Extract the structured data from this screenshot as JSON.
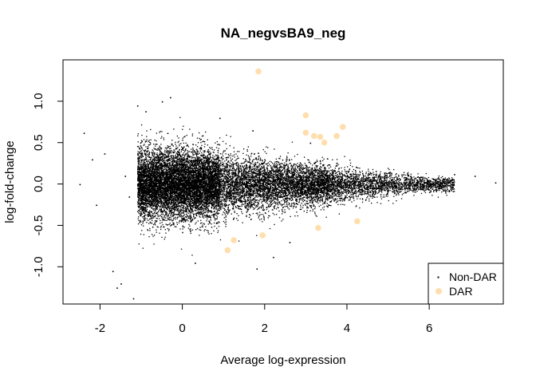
{
  "chart_data": {
    "type": "scatter",
    "title": "NA_negvsBA9_neg",
    "xlabel": "Average log-expression",
    "ylabel": "log-fold-change",
    "xlim": [
      -2.9,
      7.8
    ],
    "ylim": [
      -1.45,
      1.5
    ],
    "x_ticks": [
      "-2",
      "0",
      "2",
      "4",
      "6"
    ],
    "y_ticks": [
      "-1.0",
      "-0.5",
      "0.0",
      "0.5",
      "1.0"
    ],
    "legend": {
      "position": "bottom-right",
      "entries": [
        "Non-DAR",
        "DAR"
      ]
    },
    "colors": {
      "Non-DAR": "#000000",
      "DAR": "#FFDEAD"
    },
    "series": [
      {
        "name": "Non-DAR",
        "description": "dense cloud of ~100k points, funnel-shaped: wide spread near x=0 narrowing toward x=7",
        "outliers": [
          [
            -2.5,
            0.0
          ],
          [
            -2.4,
            0.62
          ],
          [
            -2.2,
            0.3
          ],
          [
            -2.1,
            -0.25
          ],
          [
            -1.9,
            0.37
          ],
          [
            -1.7,
            -1.05
          ],
          [
            -1.6,
            -1.25
          ],
          [
            -1.5,
            -1.2
          ],
          [
            -1.2,
            -1.38
          ],
          [
            -1.1,
            0.95
          ],
          [
            -0.3,
            1.05
          ],
          [
            -0.5,
            1.0
          ],
          [
            -0.9,
            0.88
          ],
          [
            7.6,
            0.02
          ],
          [
            7.1,
            0.1
          ],
          [
            6.6,
            0.12
          ],
          [
            1.8,
            -1.02
          ],
          [
            -1.4,
            0.1
          ],
          [
            -1.3,
            -0.15
          ],
          [
            0.3,
            -0.95
          ],
          [
            2.2,
            -0.88
          ],
          [
            0.9,
            0.8
          ],
          [
            1.7,
            0.65
          ],
          [
            3.1,
            0.5
          ],
          [
            2.6,
            -0.7
          ]
        ]
      },
      {
        "name": "DAR",
        "points": [
          [
            1.85,
            1.36
          ],
          [
            3.0,
            0.83
          ],
          [
            3.0,
            0.62
          ],
          [
            3.2,
            0.58
          ],
          [
            3.35,
            0.57
          ],
          [
            3.45,
            0.5
          ],
          [
            3.75,
            0.58
          ],
          [
            3.9,
            0.69
          ],
          [
            4.25,
            -0.45
          ],
          [
            3.3,
            -0.53
          ],
          [
            1.95,
            -0.62
          ],
          [
            1.25,
            -0.68
          ],
          [
            1.1,
            -0.8
          ]
        ]
      }
    ]
  }
}
